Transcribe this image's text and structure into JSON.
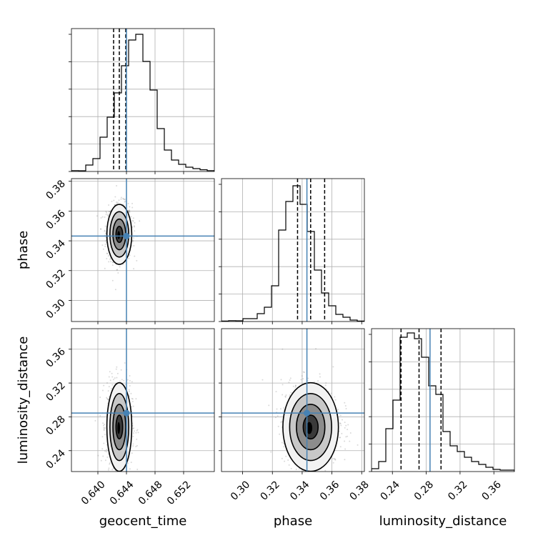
{
  "chart_data": {
    "type": "corner",
    "parameters": [
      {
        "name": "geocent_time",
        "label": "geocent_time",
        "range": [
          0.6363,
          0.6563
        ],
        "ticks": [
          0.64,
          0.644,
          0.648,
          0.652
        ],
        "tick_labels": [
          "0.640",
          "0.644",
          "0.648",
          "0.652"
        ]
      },
      {
        "name": "phase",
        "label": "phase",
        "range": [
          0.2858,
          0.3818
        ],
        "ticks": [
          0.3,
          0.32,
          0.34,
          0.36,
          0.38
        ],
        "tick_labels": [
          "0.30",
          "0.32",
          "0.34",
          "0.36",
          "0.38"
        ]
      },
      {
        "name": "luminosity_distance",
        "label": "luminosity_distance",
        "range": [
          0.2153,
          0.3843
        ],
        "ticks": [
          0.24,
          0.28,
          0.32,
          0.36
        ],
        "tick_labels": [
          "0.24",
          "0.28",
          "0.32",
          "0.36"
        ]
      }
    ],
    "truths": [
      0.644,
      0.3432,
      0.2845
    ],
    "quantiles": [
      [
        0.6422,
        0.643,
        0.6439
      ],
      [
        0.3369,
        0.3457,
        0.3551
      ],
      [
        0.2502,
        0.2715,
        0.2975
      ]
    ],
    "histograms": [
      [
        0.006,
        0.005,
        0.045,
        0.09,
        0.24,
        0.38,
        0.55,
        0.74,
        0.92,
        0.96,
        0.77,
        0.57,
        0.3,
        0.15,
        0.08,
        0.05,
        0.03,
        0.02,
        0.012,
        0.006
      ],
      [
        0.003,
        0.006,
        0.005,
        0.02,
        0.02,
        0.055,
        0.1,
        0.25,
        0.64,
        0.84,
        0.95,
        0.82,
        0.63,
        0.36,
        0.2,
        0.11,
        0.05,
        0.03,
        0.01,
        0.003
      ],
      [
        0.02,
        0.07,
        0.3,
        0.5,
        0.94,
        0.97,
        0.93,
        0.8,
        0.6,
        0.54,
        0.28,
        0.18,
        0.14,
        0.1,
        0.07,
        0.05,
        0.03,
        0.015,
        0.01,
        0.01
      ]
    ],
    "truth_color": "#4682b4",
    "contour_color": "#000000"
  }
}
